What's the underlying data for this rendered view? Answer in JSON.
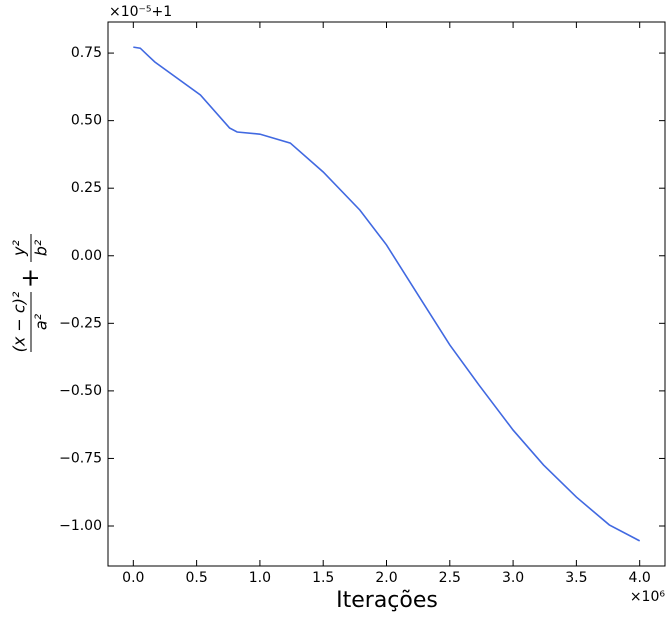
{
  "chart_data": {
    "type": "line",
    "xlabel": "Iterações",
    "ylabel": {
      "numerator1": "(x − c)²",
      "denominator1": "a²",
      "operator": "+",
      "numerator2": "y²",
      "denominator2": "b²"
    },
    "x_offset_text": "×10⁶",
    "y_offset_text": "×10⁻⁵+1",
    "xlim": [
      -0.2,
      4.2
    ],
    "ylim": [
      -1.148,
      0.865
    ],
    "xticks": [
      {
        "value": 0,
        "label": "0.0"
      },
      {
        "value": 0.5,
        "label": "0.5"
      },
      {
        "value": 1,
        "label": "1.0"
      },
      {
        "value": 1.5,
        "label": "1.5"
      },
      {
        "value": 2,
        "label": "2.0"
      },
      {
        "value": 2.5,
        "label": "2.5"
      },
      {
        "value": 3,
        "label": "3.0"
      },
      {
        "value": 3.5,
        "label": "3.5"
      },
      {
        "value": 4,
        "label": "4.0"
      }
    ],
    "yticks": [
      {
        "value": -1,
        "label": "−1.00"
      },
      {
        "value": -0.75,
        "label": "−0.75"
      },
      {
        "value": -0.5,
        "label": "−0.50"
      },
      {
        "value": -0.25,
        "label": "−0.25"
      },
      {
        "value": 0,
        "label": "0.00"
      },
      {
        "value": 0.25,
        "label": "0.25"
      },
      {
        "value": 0.5,
        "label": "0.50"
      },
      {
        "value": 0.75,
        "label": "0.75"
      }
    ],
    "series": [
      {
        "color": "#4169e1",
        "x": [
          0,
          0.055,
          0.12,
          0.17,
          0.53,
          0.76,
          0.82,
          1.0,
          1.24,
          1.5,
          1.79,
          2.0,
          2.26,
          2.5,
          2.73,
          3.0,
          3.24,
          3.5,
          3.76,
          4.0
        ],
        "values": [
          0.772,
          0.768,
          0.739,
          0.717,
          0.595,
          0.473,
          0.458,
          0.45,
          0.417,
          0.31,
          0.169,
          0.04,
          -0.153,
          -0.33,
          -0.478,
          -0.645,
          -0.774,
          -0.893,
          -0.996,
          -1.055
        ]
      }
    ]
  }
}
